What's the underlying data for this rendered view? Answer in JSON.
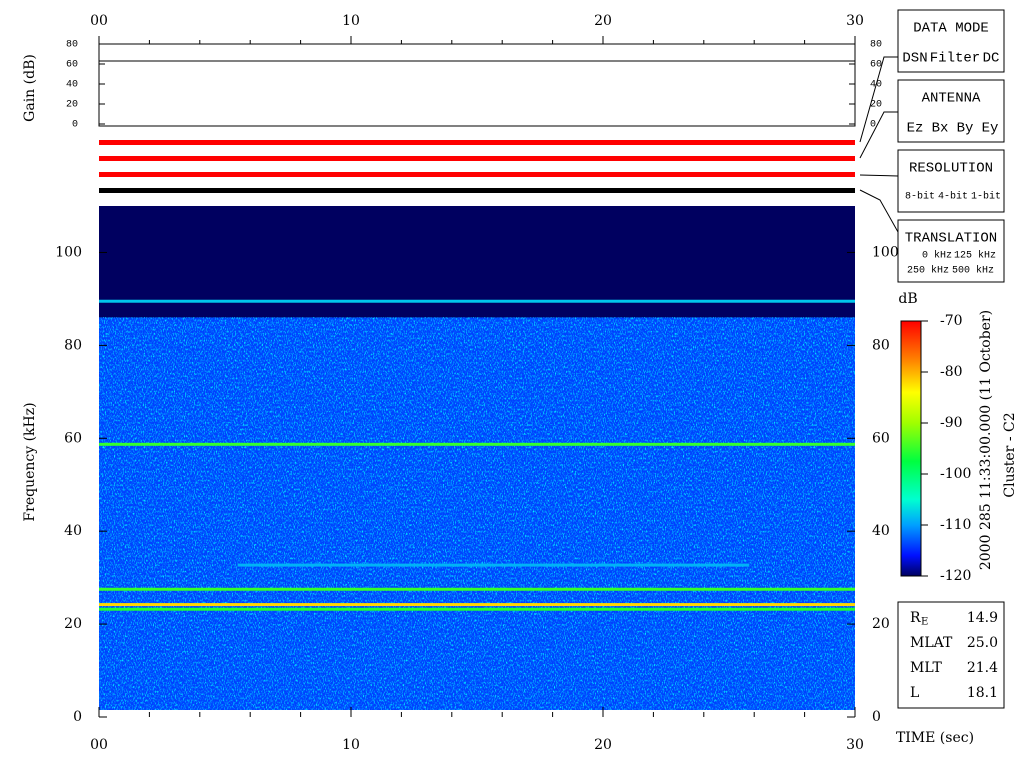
{
  "chart_data": {
    "type": "spectrogram",
    "xlim": [
      0,
      30
    ],
    "xticks": [
      {
        "value": 0,
        "label": "00"
      },
      10,
      20,
      30
    ],
    "x_minor_ticks": [
      2,
      4,
      6,
      8,
      12,
      14,
      16,
      18,
      22,
      24,
      26,
      28
    ],
    "xlabel": "TIME (sec)",
    "gain": {
      "ylabel": "Gain (dB)",
      "ylim": [
        -2,
        80
      ],
      "yticks": [
        0,
        20,
        40,
        60,
        80
      ],
      "x": [
        0,
        30
      ],
      "values": [
        63,
        63
      ]
    },
    "status_bars": [
      "#ff0000",
      "#ff0000",
      "#ff0000",
      "#000000"
    ],
    "spectrogram": {
      "ylabel": "Frequency (kHz)",
      "ylim": [
        0,
        110
      ],
      "yticks": [
        0,
        20,
        40,
        60,
        80,
        100
      ],
      "background": [
        {
          "from": 0,
          "to": 86,
          "level": -114
        },
        {
          "from": 86,
          "to": 110,
          "level": -120
        }
      ],
      "lines": [
        {
          "freq": 89.5,
          "level": -108,
          "x0": 0,
          "x1": 30
        },
        {
          "freq": 58.7,
          "level": -95,
          "x0": 0,
          "x1": 30
        },
        {
          "freq": 32.7,
          "level": -109,
          "x0": 5.5,
          "x1": 25.8
        },
        {
          "freq": 27.5,
          "level": -95,
          "x0": 0,
          "x1": 30
        },
        {
          "freq": 24.2,
          "level": -82,
          "x0": 0,
          "x1": 30
        },
        {
          "freq": 23.2,
          "level": -96,
          "x0": 0,
          "x1": 30
        }
      ]
    },
    "colorbar": {
      "label": "dB",
      "lim": [
        -120,
        -70
      ],
      "ticks": [
        -70,
        -80,
        -90,
        -100,
        -110,
        -120
      ]
    },
    "time_stamp": "2000 285 11:33:00.000 (11 October)",
    "spacecraft": "Cluster - C2"
  },
  "legend_boxes": [
    {
      "title": "DATA MODE",
      "items": [
        {
          "text": "DSN",
          "color": "#ff0000"
        },
        {
          "text": "Filter",
          "color": "#00dd00"
        },
        {
          "text": "DC",
          "color": "#0000ff"
        }
      ]
    },
    {
      "title": "ANTENNA",
      "items": [
        {
          "text": "Ez",
          "color": "#ff0000"
        },
        {
          "text": "Bx",
          "color": "#00dd00"
        },
        {
          "text": "By",
          "color": "#0000ff"
        },
        {
          "text": "Ey",
          "color": "#000000"
        }
      ]
    },
    {
      "title": "RESOLUTION",
      "items": [
        {
          "text": "8-bit",
          "color": "#ff0000"
        },
        {
          "text": "4-bit",
          "color": "#00dd00"
        },
        {
          "text": "1-bit",
          "color": "#0000ff"
        }
      ]
    },
    {
      "title": "TRANSLATION",
      "items": [
        {
          "text": "0 kHz",
          "color": "#ff0000"
        },
        {
          "text": "125 kHz",
          "color": "#00dd00"
        },
        {
          "text": "250 kHz",
          "color": "#0000ff"
        },
        {
          "text": "500 kHz",
          "color": "#000000"
        }
      ]
    }
  ],
  "ephemeris": [
    {
      "label": "R",
      "sub": "E",
      "value": "14.9"
    },
    {
      "label": "MLAT",
      "value": "25.0"
    },
    {
      "label": "MLT",
      "value": "21.4"
    },
    {
      "label": "L",
      "value": "18.1"
    }
  ]
}
